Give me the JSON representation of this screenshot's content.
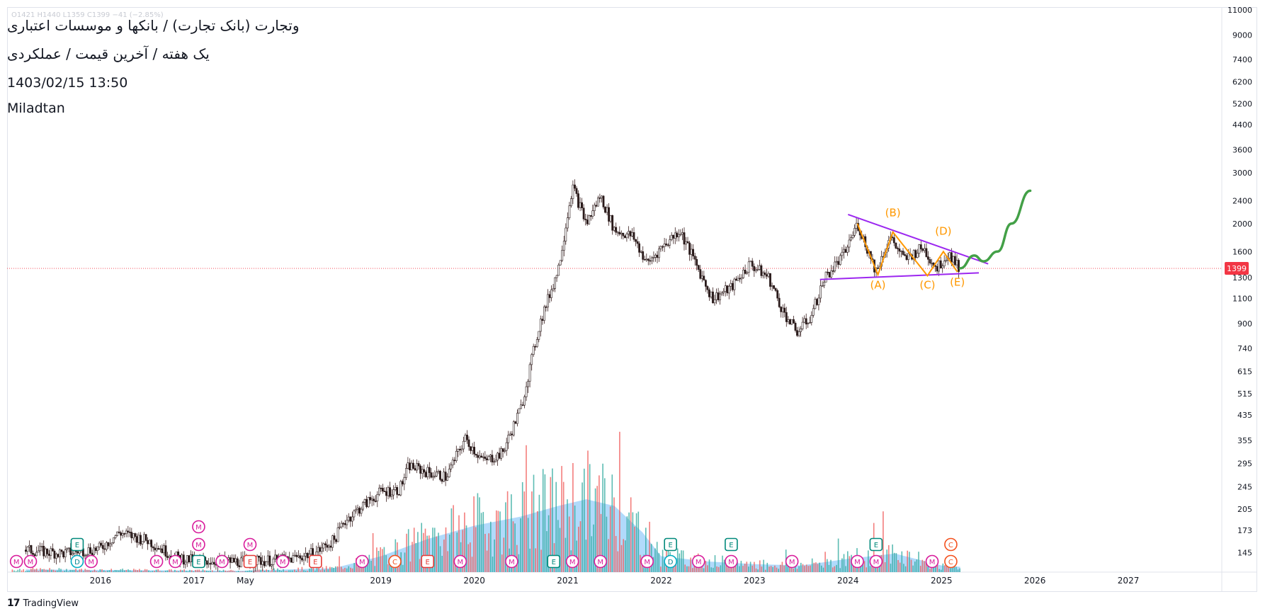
{
  "header": {
    "ticker": "وتجارت (بانک تجارت) / بانکها و موسسات اعتباری",
    "period": "یک هفته / آخرین قیمت / عملکردی",
    "datetime": "1403/02/15 13:50",
    "author": "Miladtan",
    "ohlc": "O1421  H1440  L1359  C1399  −41 (−2.85%)"
  },
  "brand": {
    "logo": "17",
    "name": "TradingView"
  },
  "colors": {
    "up": "#089981",
    "down": "#f23645",
    "candle": "#2a1b1b",
    "volume_area": "#90caf9",
    "trendline": "#9c27f0",
    "wave": "#ff9800",
    "projection": "#43a047",
    "price_badge": "#f23645"
  },
  "chart_data": {
    "type": "candlestick",
    "y_scale": "log",
    "ylim": [
      135,
      11000
    ],
    "y_ticks": [
      "11000",
      "9000",
      "7400",
      "6200",
      "5200",
      "4400",
      "3600",
      "3000",
      "2400",
      "2000",
      "1600",
      "1300",
      "1100",
      "900",
      "740",
      "615",
      "515",
      "435",
      "355",
      "295",
      "245",
      "205",
      "173",
      "145"
    ],
    "x_ticks": [
      "2016",
      "2017",
      "May",
      "2019",
      "2020",
      "2021",
      "2022",
      "2023",
      "2024",
      "2025",
      "2026",
      "2027"
    ],
    "last_price": {
      "label": "1399",
      "value": 1399
    },
    "price_path": [
      [
        "2015.2",
        148
      ],
      [
        "2015.6",
        144
      ],
      [
        "2016.0",
        150
      ],
      [
        "2016.2",
        170
      ],
      [
        "2016.5",
        160
      ],
      [
        "2016.8",
        140
      ],
      [
        "2017.0",
        136
      ],
      [
        "2017.5",
        135
      ],
      [
        "2018.0",
        137
      ],
      [
        "2018.3",
        145
      ],
      [
        "2018.5",
        160
      ],
      [
        "2018.6",
        185
      ],
      [
        "2018.8",
        210
      ],
      [
        "2019.0",
        235
      ],
      [
        "2019.2",
        240
      ],
      [
        "2019.3",
        290
      ],
      [
        "2019.5",
        275
      ],
      [
        "2019.7",
        265
      ],
      [
        "2019.9",
        360
      ],
      [
        "2020.1",
        300
      ],
      [
        "2020.3",
        320
      ],
      [
        "2020.5",
        460
      ],
      [
        "2020.7",
        900
      ],
      [
        "2020.9",
        1400
      ],
      [
        "2021.05",
        2700
      ],
      [
        "2021.2",
        2000
      ],
      [
        "2021.35",
        2500
      ],
      [
        "2021.5",
        1900
      ],
      [
        "2021.7",
        1800
      ],
      [
        "2021.85",
        1450
      ],
      [
        "2022.0",
        1650
      ],
      [
        "2022.2",
        1900
      ],
      [
        "2022.35",
        1500
      ],
      [
        "2022.55",
        1100
      ],
      [
        "2022.75",
        1200
      ],
      [
        "2022.95",
        1450
      ],
      [
        "2023.15",
        1300
      ],
      [
        "2023.3",
        1000
      ],
      [
        "2023.45",
        840
      ],
      [
        "2023.6",
        950
      ],
      [
        "2023.75",
        1300
      ],
      [
        "2023.95",
        1550
      ],
      [
        "2024.1",
        2000
      ],
      [
        "2024.3",
        1370
      ],
      [
        "2024.45",
        1800
      ],
      [
        "2024.6",
        1500
      ],
      [
        "2024.8",
        1650
      ],
      [
        "2024.95",
        1400
      ],
      [
        "2025.08",
        1580
      ],
      [
        "2025.2",
        1399
      ]
    ],
    "volume_profile": [
      [
        2015.2,
        0.02
      ],
      [
        2017.5,
        0.01
      ],
      [
        2018.5,
        0.03
      ],
      [
        2019.0,
        0.12
      ],
      [
        2019.5,
        0.25
      ],
      [
        2020.0,
        0.35
      ],
      [
        2020.5,
        0.42
      ],
      [
        2020.9,
        0.5
      ],
      [
        2021.2,
        0.55
      ],
      [
        2021.5,
        0.5
      ],
      [
        2021.8,
        0.3
      ],
      [
        2022.0,
        0.12
      ],
      [
        2022.5,
        0.08
      ],
      [
        2023.0,
        0.06
      ],
      [
        2023.5,
        0.05
      ],
      [
        2024.0,
        0.1
      ],
      [
        2024.5,
        0.14
      ],
      [
        2025.0,
        0.05
      ],
      [
        2025.2,
        0.04
      ]
    ],
    "triangle": {
      "upper": [
        [
          "2024.0",
          2150
        ],
        [
          "2025.5",
          1450
        ]
      ],
      "lower": [
        [
          "2023.7",
          1280
        ],
        [
          "2025.4",
          1350
        ]
      ]
    },
    "waves": [
      {
        "label": "(A)",
        "x": "2024.32",
        "y": 1330,
        "label_y": 1190
      },
      {
        "label": "(B)",
        "x": "2024.48",
        "y": 1870,
        "label_y": 2120
      },
      {
        "label": "(C)",
        "x": "2024.85",
        "y": 1320,
        "label_y": 1190
      },
      {
        "label": "(D)",
        "x": "2025.02",
        "y": 1600,
        "label_y": 1830
      },
      {
        "label": "(E)",
        "x": "2025.17",
        "y": 1360,
        "label_y": 1220
      }
    ],
    "projection": [
      [
        "2025.2",
        1400
      ],
      [
        "2025.35",
        1550
      ],
      [
        "2025.45",
        1480
      ],
      [
        "2025.6",
        1600
      ],
      [
        "2025.75",
        2000
      ],
      [
        "2025.95",
        2600
      ]
    ],
    "event_markers": [
      {
        "x": 2015.1,
        "letter": "M",
        "row": 0,
        "type": "m"
      },
      {
        "x": 2015.25,
        "letter": "M",
        "row": 0,
        "type": "m"
      },
      {
        "x": 2015.75,
        "letter": "D",
        "row": 0,
        "type": "d"
      },
      {
        "x": 2015.9,
        "letter": "M",
        "row": 0,
        "type": "m"
      },
      {
        "x": 2016.6,
        "letter": "M",
        "row": 0,
        "type": "m"
      },
      {
        "x": 2016.8,
        "letter": "M",
        "row": 0,
        "type": "m"
      },
      {
        "x": 2017.05,
        "letter": "E",
        "row": 0,
        "type": "e"
      },
      {
        "x": 2017.3,
        "letter": "M",
        "row": 0,
        "type": "m"
      },
      {
        "x": 2017.6,
        "letter": "E",
        "row": 0,
        "type": "er"
      },
      {
        "x": 2017.95,
        "letter": "M",
        "row": 0,
        "type": "m"
      },
      {
        "x": 2018.3,
        "letter": "E",
        "row": 0,
        "type": "er"
      },
      {
        "x": 2018.8,
        "letter": "M",
        "row": 0,
        "type": "m"
      },
      {
        "x": 2019.15,
        "letter": "C",
        "row": 0,
        "type": "c"
      },
      {
        "x": 2019.5,
        "letter": "E",
        "row": 0,
        "type": "er"
      },
      {
        "x": 2019.85,
        "letter": "M",
        "row": 0,
        "type": "m"
      },
      {
        "x": 2020.4,
        "letter": "M",
        "row": 0,
        "type": "m"
      },
      {
        "x": 2020.85,
        "letter": "E",
        "row": 0,
        "type": "e"
      },
      {
        "x": 2021.05,
        "letter": "M",
        "row": 0,
        "type": "m"
      },
      {
        "x": 2021.35,
        "letter": "M",
        "row": 0,
        "type": "m"
      },
      {
        "x": 2021.85,
        "letter": "M",
        "row": 0,
        "type": "m"
      },
      {
        "x": 2022.1,
        "letter": "D",
        "row": 0,
        "type": "d"
      },
      {
        "x": 2022.4,
        "letter": "M",
        "row": 0,
        "type": "m"
      },
      {
        "x": 2022.75,
        "letter": "M",
        "row": 0,
        "type": "m"
      },
      {
        "x": 2023.4,
        "letter": "M",
        "row": 0,
        "type": "m"
      },
      {
        "x": 2024.1,
        "letter": "M",
        "row": 0,
        "type": "m"
      },
      {
        "x": 2024.3,
        "letter": "M",
        "row": 0,
        "type": "m"
      },
      {
        "x": 2024.9,
        "letter": "M",
        "row": 0,
        "type": "m"
      },
      {
        "x": 2025.1,
        "letter": "C",
        "row": 0,
        "type": "c"
      },
      {
        "x": 2015.75,
        "letter": "E",
        "row": 1,
        "type": "e"
      },
      {
        "x": 2017.05,
        "letter": "M",
        "row": 1,
        "type": "m"
      },
      {
        "x": 2017.6,
        "letter": "M",
        "row": 1,
        "type": "m"
      },
      {
        "x": 2022.1,
        "letter": "E",
        "row": 1,
        "type": "e"
      },
      {
        "x": 2022.75,
        "letter": "E",
        "row": 1,
        "type": "e"
      },
      {
        "x": 2024.3,
        "letter": "E",
        "row": 1,
        "type": "e"
      },
      {
        "x": 2025.1,
        "letter": "C",
        "row": 1,
        "type": "c"
      },
      {
        "x": 2017.05,
        "letter": "M",
        "row": 2,
        "type": "m"
      }
    ]
  }
}
